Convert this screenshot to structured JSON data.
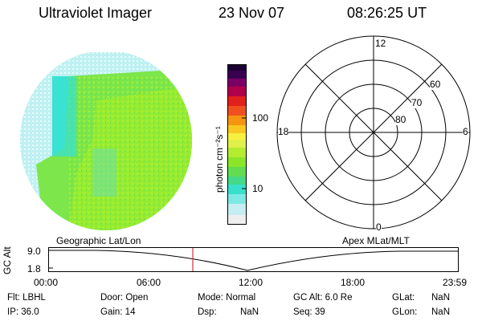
{
  "header": {
    "title": "Ultraviolet Imager",
    "date": "23 Nov 07",
    "time": "08:26:25 UT"
  },
  "colorbar": {
    "unit_label": "photon cm⁻²s⁻¹",
    "ticks": [
      "100",
      "10"
    ]
  },
  "polar_plot": {
    "mlt_labels": {
      "top": "12",
      "left": "18",
      "right": "6",
      "bottom": "0"
    },
    "lat_labels": [
      "60",
      "70",
      "80"
    ]
  },
  "timeline": {
    "left_caption": "Geographic Lat/Lon",
    "right_caption": "Apex MLat/MLT",
    "axis_label": "GC Alt",
    "y_ticks": [
      "9.0",
      "1.8"
    ],
    "x_ticks": [
      "00:00",
      "06:00",
      "12:00",
      "18:00",
      "23:59"
    ],
    "marker_time": "08:26:25",
    "marker_color": "#cc3344"
  },
  "status": {
    "flt": "Flt: LBHL",
    "ip": "IP: 36.0",
    "door": "Door: Open",
    "gain": "Gain: 14",
    "mode": "Mode: Normal",
    "dsp": "Dsp:",
    "dsp_val": "NaN",
    "gcalt": "GC Alt: 6.0 Re",
    "seq": "Seq: 39",
    "glat": "GLat:",
    "glat_val": "NaN",
    "glon": "GLon:",
    "glon_val": "NaN"
  }
}
